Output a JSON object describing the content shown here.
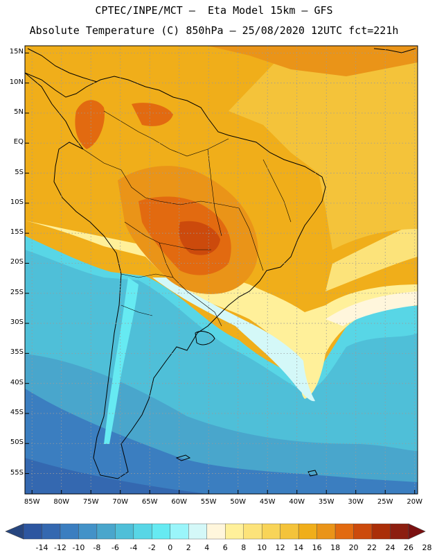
{
  "header": {
    "line1": "CPTEC/INPE/MCT –  Eta Model 15km – GFS",
    "line2": "Absolute Temperature (C) 850hPa – 25/08/2020 12UTC fct=221h"
  },
  "map": {
    "lat_labels": [
      "15N",
      "10N",
      "5N",
      "EQ",
      "5S",
      "10S",
      "15S",
      "20S",
      "25S",
      "30S",
      "35S",
      "40S",
      "45S",
      "50S",
      "55S"
    ],
    "lon_labels": [
      "85W",
      "80W",
      "75W",
      "70W",
      "65W",
      "60W",
      "55W",
      "50W",
      "45W",
      "40W",
      "35W",
      "30W",
      "25W",
      "20W"
    ],
    "lat_values": [
      15,
      10,
      5,
      0,
      -5,
      -10,
      -15,
      -20,
      -25,
      -30,
      -35,
      -40,
      -45,
      -50,
      -55
    ],
    "lon_values": [
      -85,
      -80,
      -75,
      -70,
      -65,
      -60,
      -55,
      -50,
      -45,
      -40,
      -35,
      -30,
      -25,
      -20
    ]
  },
  "colorbar": {
    "labels": [
      "-14",
      "-12",
      "-10",
      "-8",
      "-6",
      "-4",
      "-2",
      "0",
      "2",
      "4",
      "6",
      "8",
      "10",
      "12",
      "14",
      "16",
      "18",
      "20",
      "22",
      "24",
      "26",
      "28"
    ],
    "colors": [
      "#27467f",
      "#2d56a0",
      "#3468b0",
      "#3b7ec0",
      "#4392c8",
      "#49a6cc",
      "#4fbfd8",
      "#58d6e6",
      "#66eaf2",
      "#9af5fa",
      "#d4f8f8",
      "#fff6dc",
      "#fff09a",
      "#fce37a",
      "#f8d458",
      "#f4c33a",
      "#f0ae1a",
      "#ea9418",
      "#e26a10",
      "#cc4a0c",
      "#aa2e08",
      "#8c1e10",
      "#7a1010"
    ]
  }
}
